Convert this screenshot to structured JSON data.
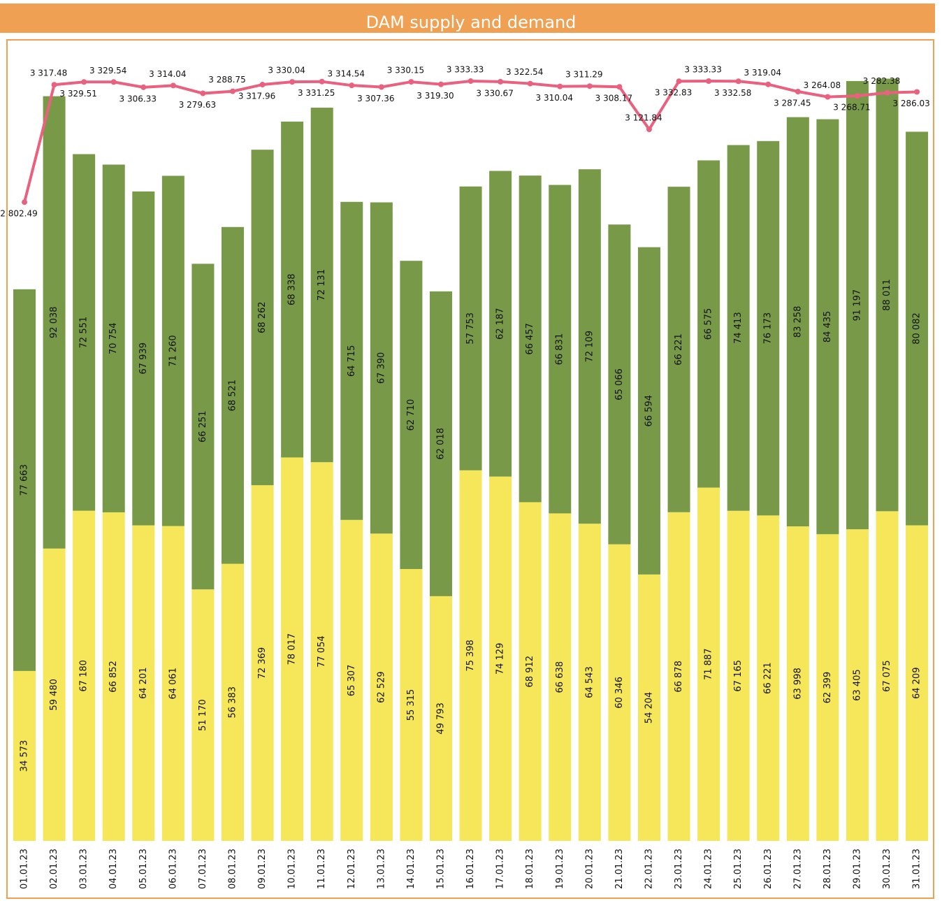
{
  "chart_data": {
    "type": "bar-line",
    "title": "DAM supply and demand",
    "categories": [
      "01.01.23",
      "02.01.23",
      "03.01.23",
      "04.01.23",
      "05.01.23",
      "06.01.23",
      "07.01.23",
      "08.01.23",
      "09.01.23",
      "10.01.23",
      "11.01.23",
      "12.01.23",
      "13.01.23",
      "14.01.23",
      "15.01.23",
      "16.01.23",
      "17.01.23",
      "18.01.23",
      "19.01.23",
      "20.01.23",
      "21.01.23",
      "22.01.23",
      "23.01.23",
      "24.01.23",
      "25.01.23",
      "26.01.23",
      "27.01.23",
      "28.01.23",
      "29.01.23",
      "30.01.23",
      "31.01.23"
    ],
    "ylim": [
      0,
      160000
    ],
    "y2lim": [
      0,
      3450
    ],
    "series": [
      {
        "type": "bar",
        "color": "#f5e65a",
        "values": [
          34573,
          59480,
          67180,
          66852,
          64201,
          64061,
          51170,
          56383,
          72369,
          78017,
          77054,
          65307,
          62529,
          55315,
          49793,
          75398,
          74129,
          68912,
          66638,
          64543,
          60346,
          54204,
          66878,
          71887,
          67165,
          66221,
          63998,
          62399,
          63405,
          67075,
          64209
        ],
        "value_labels": [
          "34 573",
          "59 480",
          "67 180",
          "66 852",
          "64 201",
          "64 061",
          "51 170",
          "56 383",
          "72 369",
          "78 017",
          "77 054",
          "65 307",
          "62 529",
          "55 315",
          "49 793",
          "75 398",
          "74 129",
          "68 912",
          "66 638",
          "64 543",
          "60 346",
          "54 204",
          "66 878",
          "71 887",
          "67 165",
          "66 221",
          "63 998",
          "62 399",
          "63 405",
          "67 075",
          "64 209"
        ]
      },
      {
        "type": "bar",
        "color": "#789a48",
        "values": [
          77663,
          92038,
          72551,
          70754,
          67939,
          71260,
          66251,
          68521,
          68262,
          68338,
          72131,
          64715,
          67390,
          62710,
          62018,
          57753,
          62187,
          66457,
          66831,
          72109,
          65066,
          66594,
          66221,
          66575,
          74413,
          76173,
          83258,
          84435,
          91197,
          88011,
          80082
        ],
        "value_labels": [
          "77 663",
          "92 038",
          "72 551",
          "70 754",
          "67 939",
          "71 260",
          "66 251",
          "68 521",
          "68 262",
          "68 338",
          "72 131",
          "64 715",
          "67 390",
          "62 710",
          "62 018",
          "57 753",
          "62 187",
          "66 457",
          "66 831",
          "72 109",
          "65 066",
          "66 594",
          "66 221",
          "66 575",
          "74 413",
          "76 173",
          "83 258",
          "84 435",
          "91 197",
          "88 011",
          "80 082"
        ]
      },
      {
        "type": "line",
        "axis": "y2",
        "color": "#e9617e",
        "values": [
          2802.49,
          3317.48,
          3329.51,
          3329.54,
          3306.33,
          3314.04,
          3279.63,
          3288.75,
          3317.96,
          3330.04,
          3331.25,
          3314.54,
          3307.36,
          3330.15,
          3319.3,
          3333.33,
          3330.67,
          3322.54,
          3310.04,
          3311.29,
          3308.17,
          3121.84,
          3332.83,
          3333.33,
          3332.58,
          3319.04,
          3287.45,
          3264.08,
          3268.71,
          3282.38,
          3286.03
        ],
        "value_labels": [
          "2 802.49",
          "3 317.48",
          "3 329.51",
          "3 329.54",
          "3 306.33",
          "3 314.04",
          "3 279.63",
          "3 288.75",
          "3 317.96",
          "3 330.04",
          "3 331.25",
          "3 314.54",
          "3 307.36",
          "3 330.15",
          "3 319.30",
          "3 333.33",
          "3 330.67",
          "3 322.54",
          "3 310.04",
          "3 311.29",
          "3 308.17",
          "3 121.84",
          "3 332.83",
          "3 333.33",
          "3 332.58",
          "3 319.04",
          "3 287.45",
          "3 264.08",
          "3 268.71",
          "3 282.38",
          "3 286.03"
        ]
      }
    ]
  }
}
